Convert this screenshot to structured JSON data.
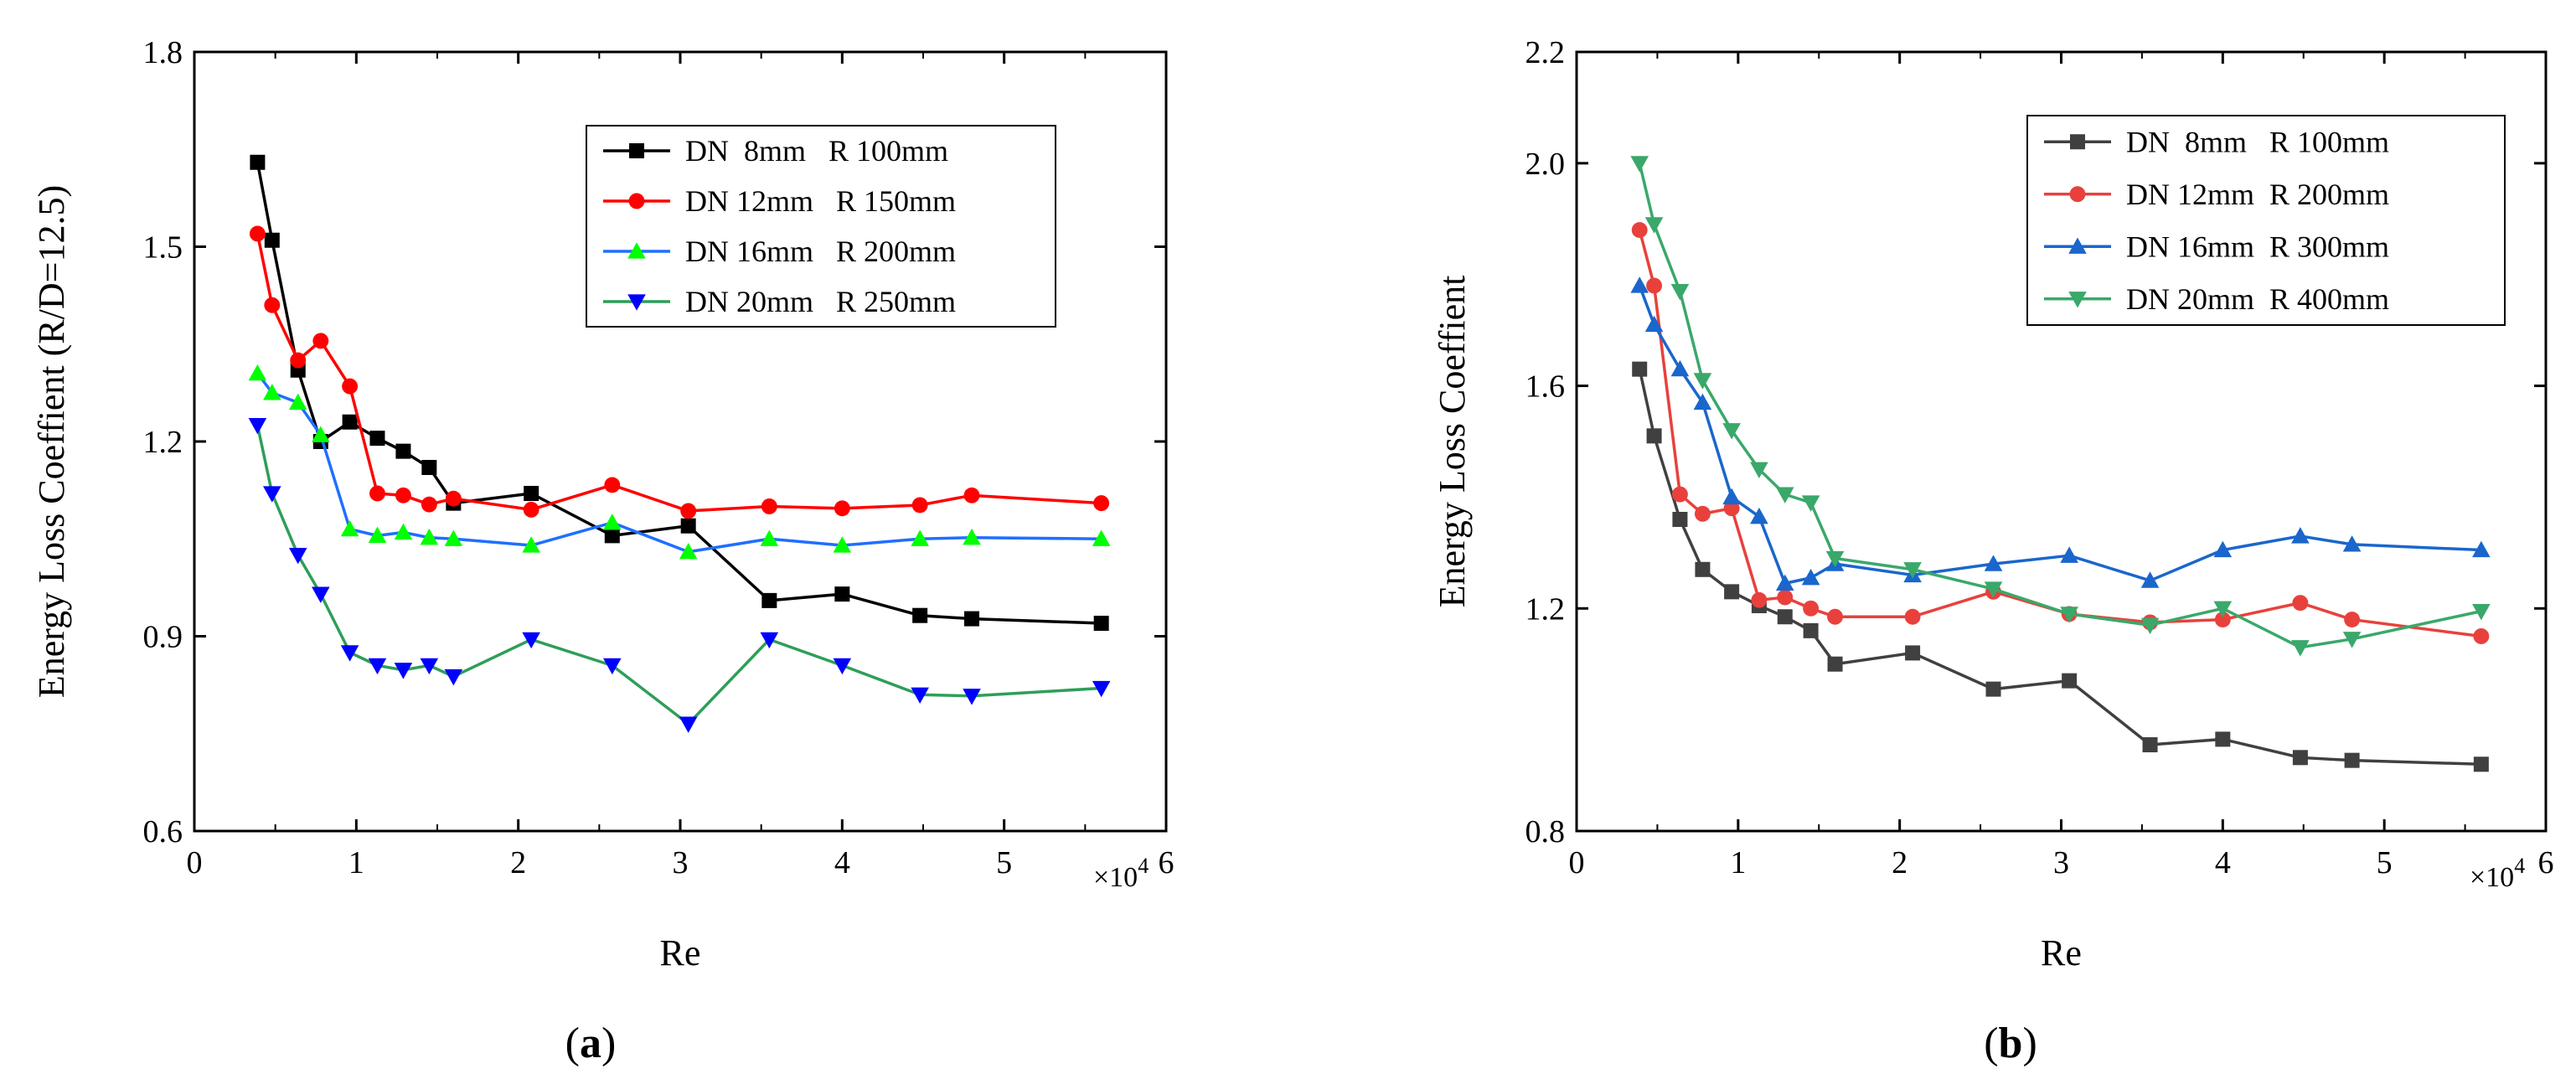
{
  "chart_data": [
    {
      "type": "line",
      "panel": "a",
      "caption_open": "(",
      "caption_letter": "a",
      "caption_close": ")",
      "xlabel": "Re",
      "ylabel": "Energy Loss Coeffient (R/D=12.5)",
      "x_multiplier": "×10",
      "x_multiplier_exp": "4",
      "xlim": [
        0,
        6
      ],
      "ylim": [
        0.6,
        1.8
      ],
      "xticks": [
        0,
        1,
        2,
        3,
        4,
        5,
        6
      ],
      "xtick_labels": [
        "0",
        "1",
        "2",
        "3",
        "4",
        "5",
        "6"
      ],
      "yticks": [
        0.6,
        0.9,
        1.2,
        1.5,
        1.8
      ],
      "ytick_labels": [
        "0.6",
        "0.9",
        "1.2",
        "1.5",
        "1.8"
      ],
      "legend_position": "top-right",
      "series": [
        {
          "name": "DN  8mm   R 100mm",
          "line_color": "#000000",
          "marker_color": "#000000",
          "marker": "square",
          "x": [
            0.39,
            0.48,
            0.64,
            0.78,
            0.96,
            1.13,
            1.29,
            1.45,
            1.6,
            2.08,
            2.58,
            3.05,
            3.55,
            4.0,
            4.48,
            4.8,
            5.6
          ],
          "y": [
            1.63,
            1.51,
            1.31,
            1.2,
            1.23,
            1.205,
            1.185,
            1.16,
            1.105,
            1.12,
            1.055,
            1.07,
            0.955,
            0.965,
            0.932,
            0.927,
            0.92
          ]
        },
        {
          "name": "DN 12mm   R 150mm",
          "line_color": "#ff0000",
          "marker_color": "#ff0000",
          "marker": "circle",
          "x": [
            0.39,
            0.48,
            0.64,
            0.78,
            0.96,
            1.13,
            1.29,
            1.45,
            1.6,
            2.08,
            2.58,
            3.05,
            3.55,
            4.0,
            4.48,
            4.8,
            5.6
          ],
          "y": [
            1.52,
            1.41,
            1.325,
            1.355,
            1.285,
            1.12,
            1.117,
            1.103,
            1.112,
            1.095,
            1.133,
            1.093,
            1.1,
            1.097,
            1.102,
            1.117,
            1.105
          ]
        },
        {
          "name": "DN 16mm   R 200mm",
          "line_color": "#1f6fff",
          "marker_color": "#00ff00",
          "marker": "triangle-up",
          "x": [
            0.39,
            0.48,
            0.64,
            0.78,
            0.96,
            1.13,
            1.29,
            1.45,
            1.6,
            2.08,
            2.58,
            3.05,
            3.55,
            4.0,
            4.48,
            4.8,
            5.6
          ],
          "y": [
            1.305,
            1.275,
            1.26,
            1.21,
            1.065,
            1.055,
            1.06,
            1.052,
            1.05,
            1.04,
            1.075,
            1.03,
            1.05,
            1.04,
            1.05,
            1.052,
            1.05
          ]
        },
        {
          "name": "DN 20mm   R 250mm",
          "line_color": "#2e9e58",
          "marker_color": "#0000ff",
          "marker": "triangle-down",
          "x": [
            0.39,
            0.48,
            0.64,
            0.78,
            0.96,
            1.13,
            1.29,
            1.45,
            1.6,
            2.08,
            2.58,
            3.05,
            3.55,
            4.0,
            4.48,
            4.8,
            5.6
          ],
          "y": [
            1.225,
            1.12,
            1.025,
            0.965,
            0.875,
            0.855,
            0.848,
            0.855,
            0.838,
            0.895,
            0.855,
            0.765,
            0.895,
            0.855,
            0.81,
            0.808,
            0.82
          ]
        }
      ]
    },
    {
      "type": "line",
      "panel": "b",
      "caption_open": "(",
      "caption_letter": "b",
      "caption_close": ")",
      "xlabel": "Re",
      "ylabel": "Energy Loss Coeffient",
      "x_multiplier": "×10",
      "x_multiplier_exp": "4",
      "xlim": [
        0,
        6
      ],
      "ylim": [
        0.8,
        2.2
      ],
      "xticks": [
        0,
        1,
        2,
        3,
        4,
        5,
        6
      ],
      "xtick_labels": [
        "0",
        "1",
        "2",
        "3",
        "4",
        "5",
        "6"
      ],
      "yticks": [
        0.8,
        1.2,
        1.6,
        2.0,
        2.2
      ],
      "ytick_labels": [
        "0.8",
        "1.2",
        "1.6",
        "2.0",
        "2.2"
      ],
      "legend_position": "top-right",
      "series": [
        {
          "name": "DN  8mm   R 100mm",
          "line_color": "#404040",
          "marker_color": "#404040",
          "marker": "square",
          "x": [
            0.39,
            0.48,
            0.64,
            0.78,
            0.96,
            1.13,
            1.29,
            1.45,
            1.6,
            2.08,
            2.58,
            3.05,
            3.55,
            4.0,
            4.48,
            4.8,
            5.6
          ],
          "y": [
            1.63,
            1.51,
            1.36,
            1.27,
            1.23,
            1.205,
            1.185,
            1.16,
            1.1,
            1.12,
            1.055,
            1.07,
            0.955,
            0.965,
            0.932,
            0.927,
            0.92
          ]
        },
        {
          "name": "DN 12mm  R 200mm",
          "line_color": "#e8413c",
          "marker_color": "#e8413c",
          "marker": "circle",
          "x": [
            0.39,
            0.48,
            0.64,
            0.78,
            0.96,
            1.13,
            1.29,
            1.45,
            1.6,
            2.08,
            2.58,
            3.05,
            3.55,
            4.0,
            4.48,
            4.8,
            5.6
          ],
          "y": [
            1.88,
            1.78,
            1.405,
            1.37,
            1.38,
            1.215,
            1.22,
            1.2,
            1.185,
            1.185,
            1.23,
            1.19,
            1.175,
            1.18,
            1.21,
            1.18,
            1.15
          ]
        },
        {
          "name": "DN 16mm  R 300mm",
          "line_color": "#1a66cc",
          "marker_color": "#1a66cc",
          "marker": "triangle-up",
          "x": [
            0.39,
            0.48,
            0.64,
            0.78,
            0.96,
            1.13,
            1.29,
            1.45,
            1.6,
            2.08,
            2.58,
            3.05,
            3.55,
            4.0,
            4.48,
            4.8,
            5.6
          ],
          "y": [
            1.78,
            1.71,
            1.63,
            1.57,
            1.4,
            1.365,
            1.245,
            1.255,
            1.28,
            1.26,
            1.28,
            1.295,
            1.25,
            1.305,
            1.33,
            1.315,
            1.305
          ]
        },
        {
          "name": "DN 20mm  R 400mm",
          "line_color": "#3aa86a",
          "marker_color": "#3aa86a",
          "marker": "triangle-down",
          "x": [
            0.39,
            0.48,
            0.64,
            0.78,
            0.96,
            1.13,
            1.29,
            1.45,
            1.6,
            2.08,
            2.58,
            3.05,
            3.55,
            4.0,
            4.48,
            4.8,
            5.6
          ],
          "y": [
            2.0,
            1.89,
            1.77,
            1.61,
            1.52,
            1.45,
            1.405,
            1.39,
            1.29,
            1.27,
            1.235,
            1.19,
            1.17,
            1.2,
            1.13,
            1.145,
            1.195
          ]
        }
      ]
    }
  ]
}
